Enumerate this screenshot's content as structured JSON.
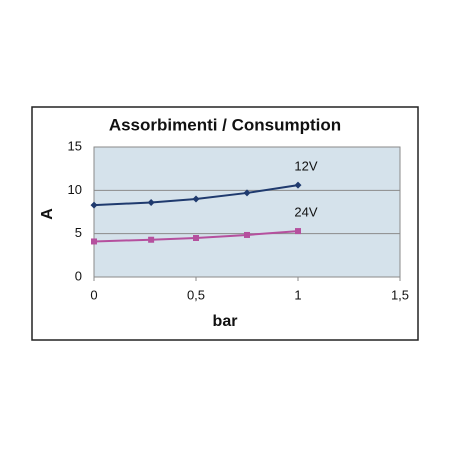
{
  "chart_data": {
    "type": "line",
    "title": "Assorbimenti / Consumption",
    "x_label": "bar",
    "y_label": "A",
    "xlim": [
      0,
      1.5
    ],
    "xticks": [
      0,
      {
        "value": 0.5,
        "label": "0,5"
      },
      1,
      {
        "value": 1.5,
        "label": "1,5"
      }
    ],
    "ylim": [
      0,
      15
    ],
    "yticks": [
      0,
      5,
      10,
      15
    ],
    "grid": true,
    "series": [
      {
        "name": "12V",
        "color": "#1f3a6e",
        "marker": "diamond",
        "x": [
          0,
          0.28,
          0.5,
          0.75,
          1
        ],
        "values": [
          8.3,
          8.6,
          9.0,
          9.7,
          10.6
        ]
      },
      {
        "name": "24V",
        "color": "#b5509e",
        "marker": "square",
        "x": [
          0,
          0.28,
          0.5,
          0.75,
          1
        ],
        "values": [
          4.1,
          4.3,
          4.5,
          4.85,
          5.3
        ]
      }
    ]
  }
}
